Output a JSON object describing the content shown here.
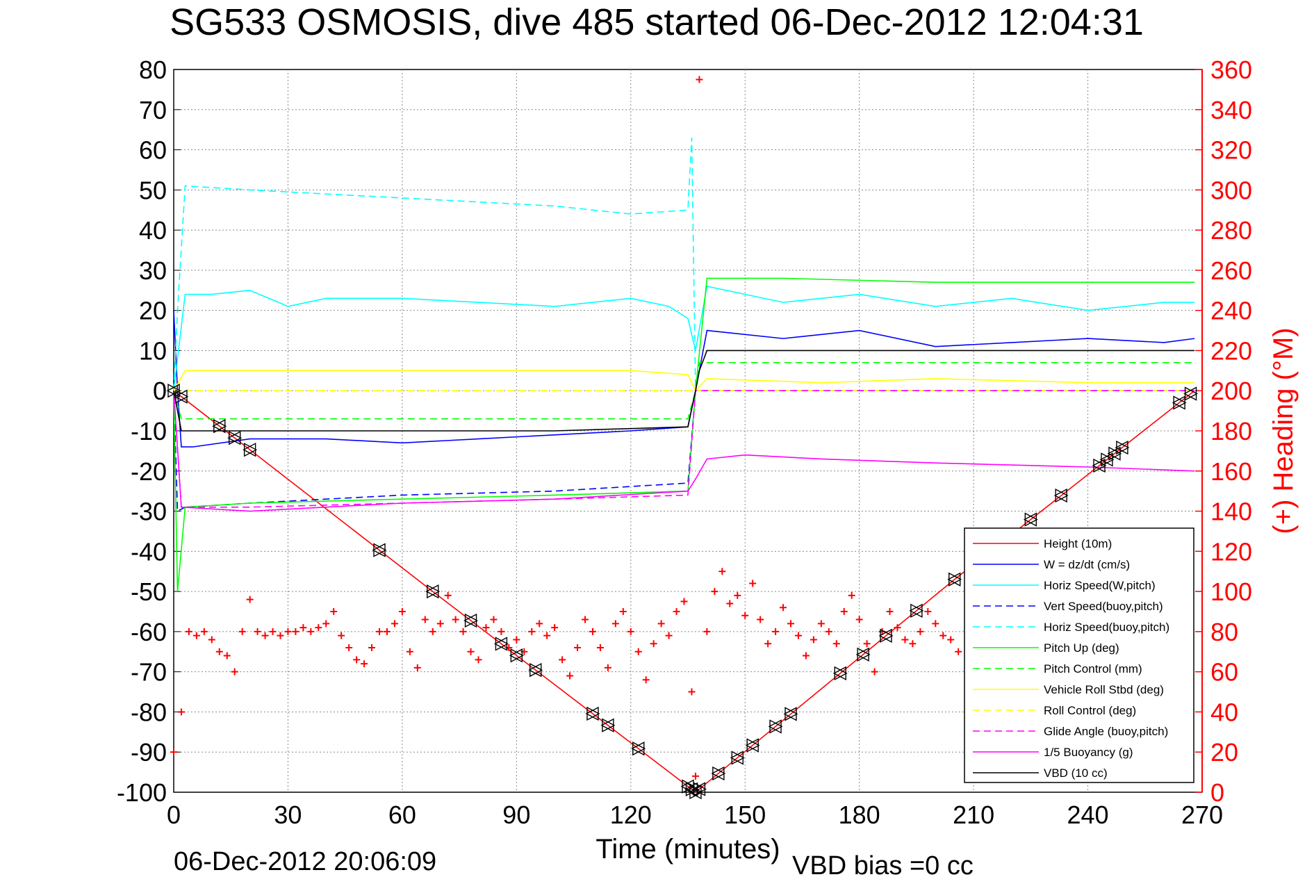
{
  "chart_data": {
    "type": "line",
    "title": "SG533 OSMOSIS, dive 485 started 06-Dec-2012 12:04:31",
    "xlabel": "Time (minutes)",
    "ylabel_right": "(+) Heading (°M)",
    "footer_left": "06-Dec-2012 20:06:09",
    "footer_right": "VBD bias =0 cc",
    "xlim": [
      0,
      270
    ],
    "ylim": [
      -100,
      80
    ],
    "ylim_right": [
      0,
      360
    ],
    "grid": true,
    "legend_position": "bottom-right",
    "x_ticks": [
      "0",
      "30",
      "60",
      "90",
      "120",
      "150",
      "180",
      "210",
      "240",
      "270"
    ],
    "y_ticks": [
      "80",
      "70",
      "60",
      "50",
      "40",
      "30",
      "20",
      "10",
      "0",
      "-10",
      "-20",
      "-30",
      "-40",
      "-50",
      "-60",
      "-70",
      "-80",
      "-90",
      "-100"
    ],
    "y_ticks_right": [
      "360",
      "340",
      "320",
      "300",
      "280",
      "260",
      "240",
      "220",
      "200",
      "180",
      "160",
      "140",
      "120",
      "100",
      "80",
      "60",
      "40",
      "20",
      "0"
    ],
    "colors": {
      "height": "#ff0000",
      "w": "#0000ff",
      "cyan": "#00ffff",
      "green": "#00ff00",
      "yellow": "#ffff00",
      "magenta": "#ff00ff",
      "black": "#000000",
      "heading": "#ff0000"
    },
    "series": [
      {
        "name": "Height (10m)",
        "color": "#ff0000",
        "style": "solid",
        "x": [
          0,
          68,
          137,
          205,
          268
        ],
        "values": [
          0,
          -50,
          -100,
          -47,
          0
        ]
      },
      {
        "name": "W = dz/dt (cm/s)",
        "color": "#0000ff",
        "style": "solid",
        "x": [
          0,
          1,
          2,
          5,
          20,
          40,
          60,
          80,
          100,
          120,
          135,
          137,
          140,
          160,
          180,
          200,
          220,
          240,
          260,
          268
        ],
        "values": [
          20,
          0,
          -14,
          -14,
          -12,
          -12,
          -13,
          -12,
          -11,
          -10,
          -9,
          0,
          15,
          13,
          15,
          11,
          12,
          13,
          12,
          13
        ]
      },
      {
        "name": "Horiz Speed(W,pitch)",
        "color": "#00ffff",
        "style": "solid",
        "x": [
          0,
          3,
          10,
          20,
          30,
          40,
          60,
          80,
          100,
          120,
          130,
          135,
          137,
          140,
          160,
          180,
          200,
          220,
          240,
          260,
          268
        ],
        "values": [
          0,
          24,
          24,
          25,
          21,
          23,
          23,
          22,
          21,
          23,
          21,
          18,
          10,
          26,
          22,
          24,
          21,
          23,
          20,
          22,
          22
        ]
      },
      {
        "name": "Vert Speed(buoy,pitch)",
        "color": "#0000ff",
        "style": "dashed",
        "x": [
          0,
          1,
          3,
          20,
          60,
          100,
          135,
          137,
          140,
          268
        ],
        "values": [
          0,
          -30,
          -29,
          -28,
          -26,
          -25,
          -23,
          0,
          0,
          0
        ]
      },
      {
        "name": "Horiz Speed(buoy,pitch)",
        "color": "#00ffff",
        "style": "dashed",
        "x": [
          0,
          1,
          3,
          20,
          60,
          100,
          120,
          135,
          136,
          137,
          140,
          268
        ],
        "values": [
          0,
          20,
          51,
          50,
          48,
          46,
          44,
          45,
          63,
          0,
          0,
          0
        ]
      },
      {
        "name": "Pitch Up (deg)",
        "color": "#00ff00",
        "style": "solid",
        "x": [
          0,
          1,
          3,
          20,
          60,
          100,
          135,
          137,
          140,
          160,
          200,
          240,
          268
        ],
        "values": [
          0,
          -50,
          -29,
          -28,
          -27,
          -26,
          -25,
          0,
          28,
          28,
          27,
          27,
          27
        ]
      },
      {
        "name": "Pitch Control (mm)",
        "color": "#00ff00",
        "style": "dashed",
        "x": [
          0,
          2,
          135,
          137,
          138,
          268
        ],
        "values": [
          0,
          -7,
          -7,
          0,
          7,
          7
        ]
      },
      {
        "name": "Vehicle Roll Stbd (deg)",
        "color": "#ffff00",
        "style": "solid",
        "x": [
          0,
          3,
          30,
          60,
          90,
          120,
          135,
          137,
          140,
          170,
          200,
          240,
          268
        ],
        "values": [
          0,
          5,
          5,
          5,
          5,
          5,
          4,
          0,
          3,
          2,
          3,
          2,
          2
        ]
      },
      {
        "name": "Roll Control (deg)",
        "color": "#ffff00",
        "style": "dashed",
        "x": [
          0,
          268
        ],
        "values": [
          0,
          0
        ]
      },
      {
        "name": "Glide Angle (buoy,pitch)",
        "color": "#ff00ff",
        "style": "dashed",
        "x": [
          0,
          2,
          20,
          60,
          100,
          135,
          137,
          140,
          268
        ],
        "values": [
          0,
          -29,
          -29,
          -28,
          -27,
          -26,
          0,
          0,
          0
        ]
      },
      {
        "name": "1/5 Buoyancy (g)",
        "color": "#ff00ff",
        "style": "solid",
        "x": [
          0,
          2,
          20,
          60,
          100,
          135,
          137,
          140,
          150,
          170,
          200,
          240,
          268
        ],
        "values": [
          0,
          -29,
          -30,
          -28,
          -27,
          -25,
          -22,
          -17,
          -16,
          -17,
          -18,
          -19,
          -20
        ]
      },
      {
        "name": "VBD (10 cc)",
        "color": "#000000",
        "style": "solid",
        "x": [
          0,
          2,
          60,
          100,
          135,
          137,
          138,
          140,
          268
        ],
        "values": [
          0,
          -10,
          -10,
          -10,
          -9,
          0,
          5,
          10,
          10
        ]
      }
    ],
    "heading": {
      "name": "Heading (+)",
      "marker": "+",
      "color": "#ff0000",
      "axis": "right",
      "x": [
        0,
        2,
        4,
        6,
        8,
        10,
        12,
        14,
        16,
        18,
        20,
        22,
        24,
        26,
        28,
        30,
        32,
        34,
        36,
        38,
        40,
        42,
        44,
        46,
        48,
        50,
        52,
        54,
        56,
        58,
        60,
        62,
        64,
        66,
        68,
        70,
        72,
        74,
        76,
        78,
        80,
        82,
        84,
        86,
        88,
        90,
        92,
        94,
        96,
        98,
        100,
        102,
        104,
        106,
        108,
        110,
        112,
        114,
        116,
        118,
        120,
        122,
        124,
        126,
        128,
        130,
        132,
        134,
        136,
        137,
        138,
        140,
        142,
        144,
        146,
        148,
        150,
        152,
        154,
        156,
        158,
        160,
        162,
        164,
        166,
        168,
        170,
        172,
        174,
        176,
        178,
        180,
        182,
        184,
        186,
        188,
        190,
        192,
        194,
        196,
        198,
        200,
        202,
        204,
        206
      ],
      "values": [
        20,
        40,
        80,
        78,
        80,
        76,
        70,
        68,
        60,
        80,
        96,
        80,
        78,
        80,
        78,
        80,
        80,
        82,
        80,
        82,
        84,
        90,
        78,
        72,
        66,
        64,
        72,
        80,
        80,
        84,
        90,
        70,
        62,
        86,
        80,
        84,
        98,
        86,
        80,
        70,
        66,
        82,
        86,
        80,
        72,
        76,
        70,
        80,
        84,
        78,
        82,
        66,
        58,
        72,
        86,
        80,
        72,
        62,
        84,
        90,
        80,
        70,
        56,
        74,
        84,
        78,
        90,
        95,
        50,
        8,
        355,
        80,
        100,
        110,
        94,
        98,
        88,
        104,
        86,
        74,
        80,
        92,
        84,
        78,
        68,
        76,
        84,
        80,
        74,
        90,
        98,
        86,
        74,
        60,
        80,
        90,
        82,
        76,
        74,
        80,
        90,
        84,
        78,
        76,
        70
      ]
    },
    "markers": {
      "name": "Triangle markers on Height",
      "x": [
        0,
        2,
        12,
        16,
        20,
        54,
        68,
        78,
        86,
        90,
        95,
        110,
        114,
        122,
        135,
        136,
        137,
        138,
        143,
        148,
        152,
        158,
        162,
        175,
        181,
        187,
        195,
        205,
        219,
        225,
        233,
        243,
        245,
        247,
        249,
        264,
        267
      ]
    }
  }
}
